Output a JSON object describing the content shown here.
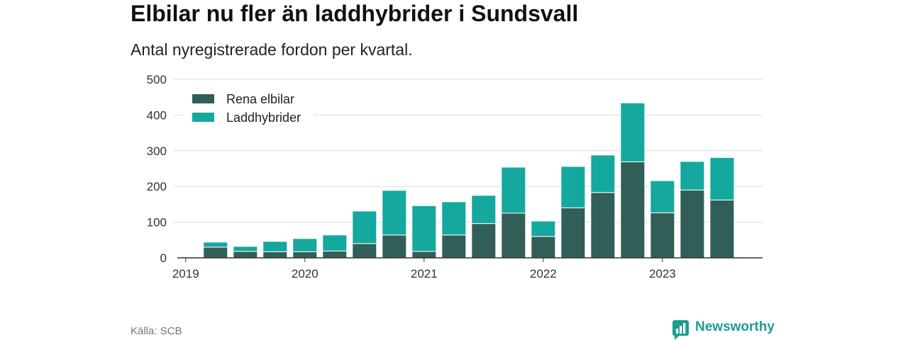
{
  "chart_data": {
    "type": "bar",
    "stacked": true,
    "title": "Elbilar nu fler än laddhybrider i Sundsvall",
    "subtitle": "Antal nyregistrerade fordon per kvartal.",
    "x": [
      2019.25,
      2019.5,
      2019.75,
      2020.0,
      2020.25,
      2020.5,
      2020.75,
      2021.0,
      2021.25,
      2021.5,
      2021.75,
      2022.0,
      2022.25,
      2022.5,
      2022.75,
      2023.0,
      2023.25,
      2023.5
    ],
    "series": [
      {
        "name": "Rena elbilar",
        "color": "#325e58",
        "values": [
          30,
          18,
          17,
          17,
          19,
          40,
          64,
          18,
          64,
          96,
          125,
          60,
          140,
          183,
          269,
          126,
          190,
          162
        ]
      },
      {
        "name": "Laddhybrider",
        "color": "#14a89e",
        "values": [
          14,
          14,
          29,
          37,
          45,
          91,
          125,
          128,
          93,
          79,
          129,
          43,
          116,
          105,
          165,
          90,
          80,
          119
        ]
      }
    ],
    "xticks": [
      2019,
      2020,
      2021,
      2022,
      2023
    ],
    "xtick_labels": [
      "2019",
      "2020",
      "2021",
      "2022",
      "2023"
    ],
    "yticks": [
      0,
      100,
      200,
      300,
      400,
      500
    ],
    "ytick_labels": [
      "0",
      "100",
      "200",
      "300",
      "400",
      "500"
    ],
    "xlim": [
      2018.93,
      2023.84
    ],
    "ylim": [
      0,
      500
    ],
    "grid": true,
    "legend": "top-left"
  },
  "source": "Källa: SCB",
  "logo": {
    "text": "Newsworthy",
    "icon": "newsworthy-chart-bubble-icon",
    "color": "#1f9c91"
  },
  "colors": {
    "axis": "#333333",
    "grid": "#dcdcdc",
    "tick_text": "#333333"
  }
}
